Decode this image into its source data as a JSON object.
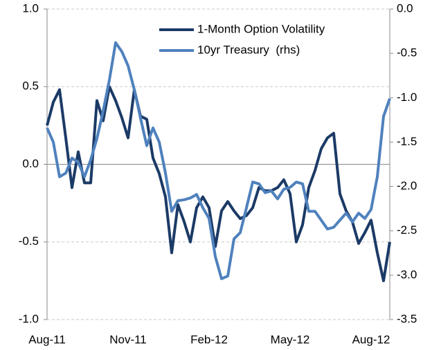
{
  "chart_data": {
    "type": "line",
    "categories": [
      "Aug-11",
      null,
      null,
      null,
      null,
      null,
      null,
      null,
      null,
      null,
      null,
      null,
      null,
      "Nov-11",
      null,
      null,
      null,
      null,
      null,
      null,
      null,
      null,
      null,
      null,
      null,
      null,
      "Feb-12",
      null,
      null,
      null,
      null,
      null,
      null,
      null,
      null,
      null,
      null,
      null,
      null,
      "May-12",
      null,
      null,
      null,
      null,
      null,
      null,
      null,
      null,
      null,
      null,
      null,
      null,
      "Aug-12",
      null,
      null,
      null
    ],
    "series": [
      {
        "name": "1-Month Option Volatility",
        "color": "#1b3a66",
        "axis": "y",
        "values": [
          0.25,
          0.4,
          0.48,
          0.17,
          -0.15,
          0.08,
          -0.12,
          -0.12,
          0.41,
          0.28,
          0.5,
          0.41,
          0.3,
          0.17,
          0.48,
          0.31,
          0.29,
          0.04,
          -0.06,
          -0.21,
          -0.57,
          -0.26,
          -0.37,
          -0.5,
          -0.28,
          -0.21,
          -0.28,
          -0.53,
          -0.3,
          -0.24,
          -0.3,
          -0.35,
          -0.33,
          -0.28,
          -0.15,
          -0.17,
          -0.17,
          -0.15,
          -0.1,
          -0.19,
          -0.5,
          -0.39,
          -0.15,
          -0.04,
          0.1,
          0.17,
          0.2,
          -0.19,
          -0.3,
          -0.37,
          -0.51,
          -0.44,
          -0.36,
          -0.57,
          -0.75,
          -0.5
        ]
      },
      {
        "name": "10yr Treasury  (rhs)",
        "color": "#4f81bd",
        "axis": "y2",
        "values": [
          -1.34,
          -1.5,
          -1.89,
          -1.85,
          -1.68,
          -1.73,
          -1.89,
          -1.7,
          -1.46,
          -1.15,
          -0.8,
          -0.38,
          -0.48,
          -0.64,
          -0.91,
          -1.23,
          -1.54,
          -1.34,
          -1.5,
          -1.85,
          -2.28,
          -2.16,
          -2.15,
          -2.13,
          -2.09,
          -2.24,
          -2.36,
          -2.79,
          -3.04,
          -3.01,
          -2.59,
          -2.52,
          -2.24,
          -1.95,
          -1.97,
          -2.07,
          -2.05,
          -2.14,
          -2.03,
          -2.01,
          -1.95,
          -1.97,
          -2.28,
          -2.28,
          -2.38,
          -2.48,
          -2.46,
          -2.38,
          -2.3,
          -2.4,
          -2.3,
          -2.36,
          -2.26,
          -1.89,
          -1.21,
          -1.01
        ]
      }
    ],
    "ylim": [
      -1,
      1
    ],
    "yticks": [
      {
        "value": 1,
        "label": "1.0"
      },
      0.5,
      {
        "value": 0,
        "label": "0.0"
      },
      -0.5,
      {
        "value": -1,
        "label": "-1.0"
      }
    ],
    "y2lim": [
      -3.5,
      0
    ],
    "y2ticks": [
      {
        "value": 0,
        "label": "0.0"
      },
      -0.5,
      {
        "value": -1,
        "label": "-1.0"
      },
      -1.5,
      {
        "value": -2,
        "label": "-2.0"
      },
      -2.5,
      {
        "value": -3,
        "label": "-3.0"
      },
      -3.5
    ],
    "grid": true,
    "legend": "top-right"
  }
}
